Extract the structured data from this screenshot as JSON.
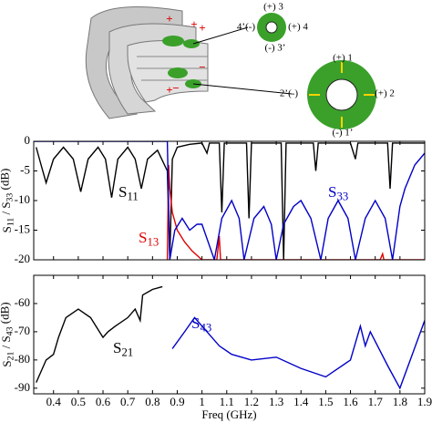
{
  "illustration": {
    "port_labels": [
      "(+) 3",
      "4’(-)",
      "(+) 4",
      "(-) 3’",
      "(+) 1",
      "2’(-)",
      "(+) 2",
      "(-) 1’"
    ],
    "sign_labels": [
      "+",
      "+",
      "+",
      "−",
      "−",
      "+"
    ]
  },
  "chart_data": [
    {
      "type": "line",
      "xlim": [
        0.32,
        1.9
      ],
      "ylim": [
        -20,
        0
      ],
      "yticks": [
        -20,
        -15,
        -10,
        -5,
        0
      ],
      "xticks": [
        0.4,
        0.5,
        0.6,
        0.7,
        0.8,
        0.9,
        1,
        1.1,
        1.2,
        1.3,
        1.4,
        1.5,
        1.6,
        1.7,
        1.8,
        1.9
      ],
      "ylabel": "S11 / S33 (dB)",
      "series": [
        {
          "name": "S11",
          "color": "#000000",
          "x": [
            0.33,
            0.35,
            0.37,
            0.4,
            0.44,
            0.48,
            0.51,
            0.54,
            0.58,
            0.61,
            0.635,
            0.66,
            0.7,
            0.73,
            0.755,
            0.78,
            0.82,
            0.86,
            0.87,
            0.88,
            0.9,
            0.95,
            1.0,
            1.02,
            1.03,
            1.07,
            1.08,
            1.09,
            1.18,
            1.19,
            1.2,
            1.32,
            1.33,
            1.34,
            1.45,
            1.46,
            1.47,
            1.6,
            1.62,
            1.63,
            1.75,
            1.76,
            1.77,
            1.9
          ],
          "values": [
            -1,
            -4,
            -7,
            -3,
            -1,
            -3,
            -8.5,
            -3,
            -1,
            -3,
            -9.5,
            -3,
            -1,
            -3,
            -8,
            -3,
            -1.5,
            -5,
            -20,
            -3,
            -1,
            -0.5,
            -0.3,
            -2,
            -0.3,
            -0.3,
            -12,
            -0.3,
            -0.3,
            -13,
            -0.3,
            -0.3,
            -20,
            -0.3,
            -0.3,
            -5,
            -0.3,
            -0.3,
            -3,
            -0.3,
            -0.3,
            -8,
            -0.3,
            -0.3
          ]
        },
        {
          "name": "S13",
          "color": "#e00000",
          "x": [
            0.86,
            0.865,
            0.87,
            0.88,
            0.9,
            0.93,
            0.96,
            1.0,
            1.06,
            1.07,
            1.075,
            1.2,
            1.72,
            1.73,
            1.735,
            1.9
          ],
          "values": [
            -20,
            -4,
            -8,
            -12,
            -15,
            -17,
            -18.5,
            -20,
            -20,
            -16,
            -20,
            -20,
            -20,
            -19,
            -20,
            -20
          ]
        },
        {
          "name": "S33",
          "color": "#0000c8",
          "x": [
            0.32,
            0.85,
            0.86,
            0.87,
            0.89,
            0.92,
            0.95,
            0.98,
            1.0,
            1.05,
            1.08,
            1.12,
            1.15,
            1.17,
            1.21,
            1.25,
            1.28,
            1.3,
            1.33,
            1.37,
            1.4,
            1.44,
            1.48,
            1.51,
            1.55,
            1.59,
            1.62,
            1.66,
            1.7,
            1.74,
            1.77,
            1.8,
            1.82,
            1.86,
            1.9
          ],
          "values": [
            0,
            0,
            0,
            -20,
            -15,
            -13,
            -15,
            -14,
            -14,
            -20,
            -13,
            -10,
            -13,
            -20,
            -13,
            -11,
            -14,
            -20,
            -14,
            -11,
            -10,
            -13,
            -20,
            -13,
            -10,
            -13,
            -20,
            -13,
            -10,
            -13,
            -20,
            -11,
            -8,
            -4,
            -2
          ]
        }
      ]
    },
    {
      "type": "line",
      "xlim": [
        0.32,
        1.9
      ],
      "ylim": [
        -92,
        -50
      ],
      "yticks": [
        -90,
        -80,
        -70,
        -60
      ],
      "xticks": [
        0.4,
        0.5,
        0.6,
        0.7,
        0.8,
        0.9,
        1,
        1.1,
        1.2,
        1.3,
        1.4,
        1.5,
        1.6,
        1.7,
        1.8,
        1.9
      ],
      "xlabel": "Freq (GHz)",
      "ylabel": "S21 / S43 (dB)",
      "series": [
        {
          "name": "S21",
          "color": "#000000",
          "x": [
            0.33,
            0.37,
            0.4,
            0.42,
            0.45,
            0.5,
            0.55,
            0.6,
            0.62,
            0.65,
            0.7,
            0.73,
            0.75,
            0.76,
            0.8,
            0.84
          ],
          "values": [
            -88,
            -80,
            -78,
            -72,
            -65,
            -62,
            -65,
            -72,
            -70,
            -68,
            -65,
            -62,
            -66,
            -57,
            -55,
            -54
          ]
        },
        {
          "name": "S43",
          "color": "#0000c8",
          "x": [
            0.88,
            0.93,
            0.97,
            1.02,
            1.07,
            1.12,
            1.2,
            1.3,
            1.4,
            1.5,
            1.6,
            1.64,
            1.66,
            1.68,
            1.75,
            1.8,
            1.85,
            1.9
          ],
          "values": [
            -76,
            -70,
            -65,
            -70,
            -75,
            -78,
            -80,
            -79,
            -83,
            -86,
            -80,
            -68,
            -75,
            -70,
            -82,
            -90,
            -78,
            -66
          ]
        }
      ]
    }
  ]
}
